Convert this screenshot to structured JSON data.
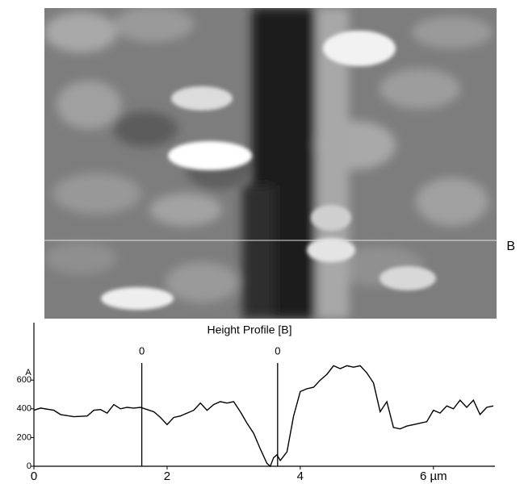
{
  "image_label": "B",
  "chart_data": {
    "type": "line",
    "title": "Height Profile [B]",
    "y_label": "A",
    "color": "#000000",
    "x": [
      0,
      0.1,
      0.3,
      0.4,
      0.6,
      0.8,
      0.9,
      1.0,
      1.1,
      1.2,
      1.3,
      1.4,
      1.5,
      1.6,
      1.7,
      1.8,
      1.9,
      2.0,
      2.1,
      2.2,
      2.3,
      2.4,
      2.5,
      2.6,
      2.7,
      2.8,
      2.9,
      3.0,
      3.1,
      3.2,
      3.3,
      3.4,
      3.5,
      3.55,
      3.6,
      3.65,
      3.7,
      3.8,
      3.9,
      4.0,
      4.1,
      4.2,
      4.3,
      4.4,
      4.5,
      4.6,
      4.7,
      4.8,
      4.9,
      5.0,
      5.1,
      5.2,
      5.3,
      5.4,
      5.5,
      5.6,
      5.7,
      5.8,
      5.9,
      6.0,
      6.1,
      6.2,
      6.3,
      6.4,
      6.5,
      6.6,
      6.7,
      6.8,
      6.9
    ],
    "values": [
      390,
      405,
      390,
      360,
      345,
      350,
      390,
      395,
      370,
      430,
      400,
      410,
      405,
      410,
      395,
      380,
      340,
      290,
      340,
      350,
      370,
      390,
      440,
      390,
      430,
      450,
      440,
      450,
      380,
      300,
      230,
      120,
      20,
      0,
      60,
      80,
      40,
      100,
      350,
      520,
      540,
      550,
      600,
      640,
      700,
      680,
      700,
      690,
      700,
      650,
      580,
      380,
      450,
      270,
      260,
      280,
      290,
      300,
      310,
      390,
      370,
      420,
      400,
      460,
      410,
      460,
      360,
      410,
      420
    ],
    "xlim": [
      0,
      6.9
    ],
    "ylim": [
      0,
      1000
    ],
    "xticks": [
      0,
      2,
      4,
      {
        "value": 6,
        "label": "6 µm"
      }
    ],
    "yticks": [
      0,
      200,
      400,
      600
    ],
    "cursors": [
      {
        "x": 1.62,
        "label": "0"
      },
      {
        "x": 3.66,
        "label": "0"
      }
    ]
  }
}
